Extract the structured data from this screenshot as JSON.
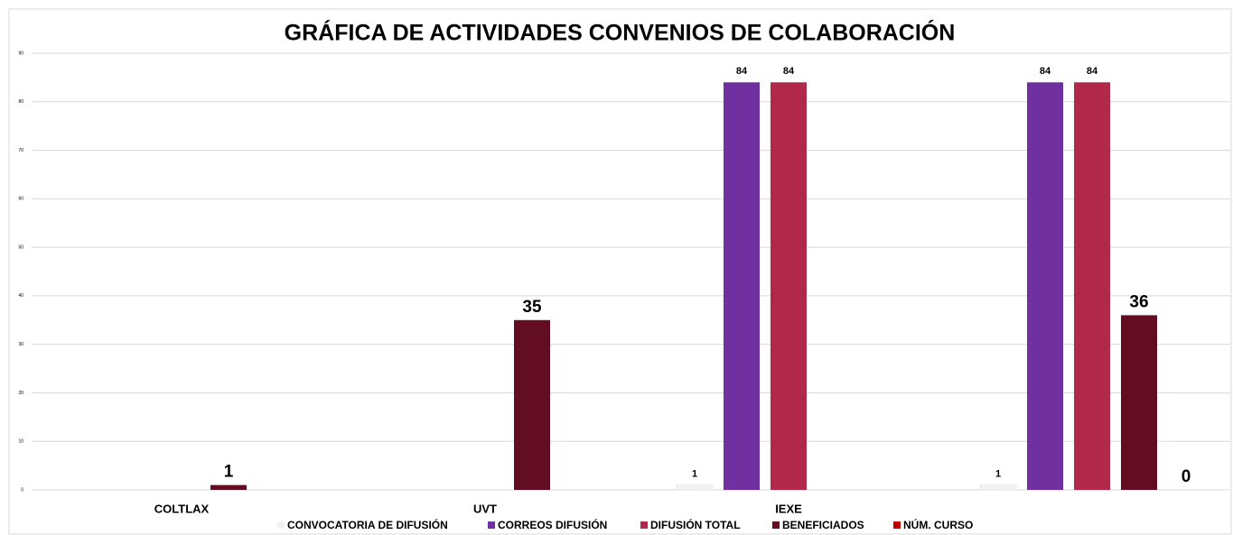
{
  "chart_data": {
    "type": "bar",
    "title": "GRÁFICA DE ACTIVIDADES CONVENIOS DE COLABORACIÓN",
    "categories": [
      "COLTLAX",
      "UVT",
      "IEXE",
      null
    ],
    "series": [
      {
        "name": "CONVOCATORIA DE DIFUSIÓN",
        "color": "#f2f2f2",
        "values": [
          null,
          null,
          1,
          1
        ]
      },
      {
        "name": "CORREOS DIFUSIÓN",
        "color": "#7030a0",
        "values": [
          null,
          null,
          84,
          84
        ]
      },
      {
        "name": "DIFUSIÓN TOTAL",
        "color": "#b0284a",
        "values": [
          null,
          null,
          84,
          84
        ]
      },
      {
        "name": "BENEFICIADOS",
        "color": "#630d22",
        "values": [
          1,
          35,
          null,
          36
        ]
      },
      {
        "name": "NÚM. CURSO",
        "color": "#c00000",
        "values": [
          null,
          null,
          null,
          0
        ]
      }
    ],
    "ylim": [
      0,
      90
    ],
    "yticks": [
      0,
      10,
      20,
      30,
      40,
      50,
      60,
      70,
      80,
      90
    ],
    "grid": true,
    "legend": "bottom"
  }
}
